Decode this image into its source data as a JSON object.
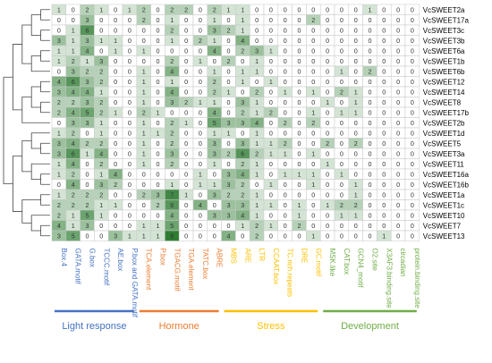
{
  "chart_data": {
    "type": "heatmap",
    "rows": [
      "VcSWEET2a",
      "VcSWEET17a",
      "VcSWEET3c",
      "VcSWEET3b",
      "VcSWEET6a",
      "VcSWEET1b",
      "VcSWEET6b",
      "VcSWEET12",
      "VcSWEET14",
      "VcSWEET8",
      "VcSWEET17b",
      "VcSWEET2b",
      "VcSWEET1d",
      "VcSWEET5",
      "VcSWEET3a",
      "VcSWEET11",
      "VcSWEET16a",
      "VcSWEET16b",
      "VcSWEET1a",
      "VcSWEET1c",
      "VcSWEET10",
      "VcSWEET7",
      "VcSWEET13"
    ],
    "columns": [
      "Box.4",
      "GATA.motif",
      "G.box",
      "TCCC.motif",
      "AE.box",
      "P.box and GATA.motif",
      "TCA.element",
      "P.box",
      "TGACG.motif",
      "TGA.element",
      "TATC.box",
      "ABRE",
      "MBS",
      "ARE",
      "LTR",
      "CCAAT.box",
      "TC.rich.repeats",
      "DRE",
      "GC.motif",
      "MSK.like",
      "CAT.box",
      "GCN4_motif",
      "O2.site",
      "X3AF3.binding.site",
      "circadian",
      "protein.binding.site"
    ],
    "column_colors": [
      "#4472c4",
      "#4472c4",
      "#4472c4",
      "#4472c4",
      "#4472c4",
      "#4472c4",
      "#ed7d31",
      "#ed7d31",
      "#ed7d31",
      "#ed7d31",
      "#ed7d31",
      "#ed7d31",
      "#ffc000",
      "#ffc000",
      "#ffc000",
      "#ffc000",
      "#ffc000",
      "#ffc000",
      "#ffc000",
      "#70ad47",
      "#70ad47",
      "#70ad47",
      "#70ad47",
      "#70ad47",
      "#70ad47",
      "#70ad47"
    ],
    "values": [
      [
        1,
        0,
        2,
        1,
        0,
        1,
        2,
        0,
        2,
        2,
        0,
        2,
        1,
        1,
        0,
        0,
        0,
        0,
        0,
        0,
        0,
        0,
        1,
        0,
        0,
        0
      ],
      [
        0,
        0,
        3,
        0,
        0,
        0,
        2,
        0,
        1,
        0,
        0,
        1,
        0,
        1,
        0,
        0,
        0,
        0,
        2,
        0,
        0,
        0,
        0,
        0,
        0,
        0
      ],
      [
        0,
        1,
        6,
        0,
        0,
        0,
        0,
        0,
        2,
        0,
        0,
        3,
        2,
        1,
        0,
        0,
        0,
        0,
        0,
        0,
        0,
        0,
        0,
        0,
        0,
        0
      ],
      [
        3,
        1,
        3,
        1,
        1,
        0,
        0,
        0,
        1,
        0,
        2,
        1,
        0,
        4,
        0,
        0,
        0,
        0,
        0,
        0,
        0,
        0,
        0,
        0,
        0,
        0
      ],
      [
        1,
        1,
        4,
        0,
        1,
        0,
        1,
        0,
        0,
        0,
        0,
        4,
        0,
        2,
        3,
        1,
        0,
        0,
        0,
        0,
        0,
        0,
        0,
        0,
        0,
        0
      ],
      [
        1,
        2,
        1,
        3,
        0,
        0,
        0,
        0,
        2,
        0,
        1,
        0,
        2,
        0,
        1,
        0,
        0,
        0,
        0,
        0,
        0,
        0,
        0,
        0,
        0,
        0
      ],
      [
        0,
        3,
        2,
        2,
        0,
        0,
        1,
        0,
        4,
        0,
        0,
        1,
        0,
        1,
        1,
        0,
        0,
        0,
        0,
        0,
        1,
        0,
        2,
        0,
        0,
        0
      ],
      [
        4,
        6,
        3,
        2,
        0,
        0,
        1,
        0,
        1,
        0,
        0,
        2,
        0,
        1,
        0,
        1,
        0,
        0,
        0,
        0,
        0,
        0,
        0,
        0,
        0,
        0
      ],
      [
        3,
        4,
        4,
        1,
        0,
        0,
        1,
        0,
        4,
        0,
        0,
        2,
        1,
        0,
        2,
        0,
        1,
        0,
        1,
        0,
        2,
        1,
        0,
        0,
        0,
        0
      ],
      [
        2,
        2,
        3,
        2,
        0,
        0,
        1,
        0,
        3,
        2,
        1,
        1,
        0,
        3,
        1,
        0,
        0,
        0,
        0,
        1,
        0,
        1,
        0,
        0,
        0,
        0
      ],
      [
        2,
        4,
        5,
        2,
        1,
        0,
        2,
        1,
        0,
        0,
        0,
        4,
        0,
        2,
        1,
        2,
        0,
        0,
        1,
        0,
        1,
        1,
        0,
        0,
        0,
        0
      ],
      [
        0,
        3,
        3,
        1,
        0,
        0,
        1,
        0,
        2,
        1,
        0,
        5,
        3,
        3,
        4,
        0,
        2,
        0,
        2,
        0,
        0,
        0,
        0,
        0,
        0,
        0
      ],
      [
        1,
        2,
        0,
        1,
        0,
        0,
        1,
        1,
        2,
        0,
        0,
        1,
        1,
        0,
        1,
        0,
        0,
        0,
        0,
        0,
        0,
        0,
        0,
        0,
        0,
        0
      ],
      [
        3,
        4,
        2,
        2,
        0,
        0,
        1,
        0,
        2,
        0,
        0,
        3,
        0,
        3,
        1,
        1,
        2,
        0,
        0,
        2,
        0,
        2,
        0,
        0,
        0,
        0
      ],
      [
        3,
        6,
        1,
        4,
        0,
        0,
        1,
        0,
        3,
        0,
        0,
        3,
        2,
        6,
        2,
        1,
        1,
        0,
        1,
        0,
        0,
        0,
        0,
        0,
        0,
        0
      ],
      [
        1,
        4,
        0,
        2,
        0,
        0,
        1,
        0,
        2,
        0,
        0,
        1,
        0,
        2,
        1,
        0,
        0,
        0,
        0,
        1,
        0,
        0,
        0,
        0,
        0,
        0
      ],
      [
        1,
        2,
        0,
        1,
        4,
        0,
        0,
        0,
        0,
        0,
        1,
        0,
        3,
        4,
        1,
        0,
        1,
        1,
        1,
        0,
        1,
        0,
        0,
        0,
        0,
        0
      ],
      [
        0,
        4,
        0,
        3,
        2,
        0,
        0,
        0,
        1,
        0,
        1,
        1,
        3,
        2,
        0,
        1,
        0,
        0,
        1,
        0,
        0,
        1,
        0,
        0,
        0,
        0
      ],
      [
        1,
        2,
        2,
        2,
        0,
        0,
        2,
        3,
        7,
        1,
        0,
        3,
        2,
        2,
        1,
        0,
        0,
        0,
        0,
        0,
        0,
        1,
        0,
        0,
        0,
        0
      ],
      [
        2,
        2,
        2,
        1,
        1,
        0,
        0,
        2,
        6,
        0,
        4,
        0,
        3,
        3,
        1,
        1,
        0,
        1,
        0,
        1,
        2,
        2,
        0,
        0,
        0,
        0
      ],
      [
        2,
        1,
        5,
        1,
        0,
        0,
        0,
        0,
        4,
        0,
        0,
        3,
        3,
        4,
        1,
        0,
        0,
        1,
        0,
        0,
        1,
        1,
        0,
        0,
        0,
        0
      ],
      [
        4,
        1,
        3,
        0,
        0,
        0,
        1,
        1,
        5,
        0,
        0,
        0,
        0,
        1,
        2,
        1,
        0,
        2,
        0,
        0,
        0,
        0,
        0,
        0,
        0,
        0
      ],
      [
        3,
        5,
        0,
        0,
        3,
        1,
        1,
        1,
        8,
        0,
        0,
        0,
        4,
        0,
        2,
        0,
        0,
        0,
        1,
        0,
        0,
        0,
        0,
        1,
        0,
        0
      ]
    ],
    "groups": [
      {
        "label": "Light response",
        "start": 0,
        "end": 5,
        "color": "#4472c4"
      },
      {
        "label": "Hormone",
        "start": 6,
        "end": 11,
        "color": "#ed7d31"
      },
      {
        "label": "Stress",
        "start": 12,
        "end": 18,
        "color": "#ffc000"
      },
      {
        "label": "Development",
        "start": 19,
        "end": 25,
        "color": "#70ad47"
      }
    ],
    "color_scale": {
      "low": "#ffffff",
      "high": "#2e7d32",
      "max": 8
    },
    "title": "",
    "xlabel": "",
    "ylabel": ""
  }
}
